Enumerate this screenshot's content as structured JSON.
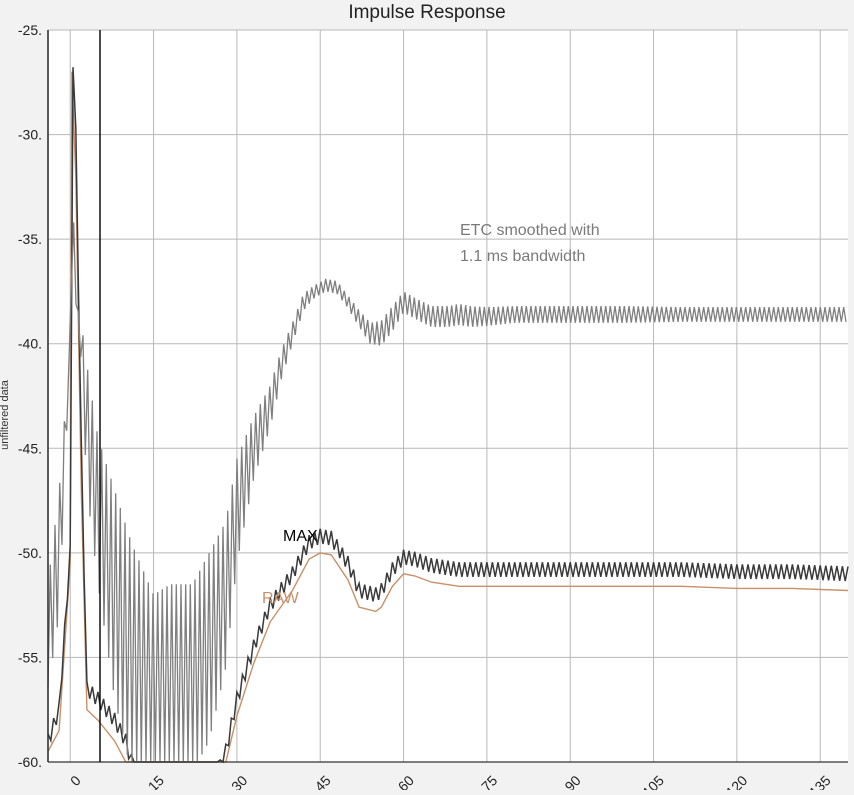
{
  "chart_data": {
    "type": "line",
    "title": "Impulse Response",
    "ylabel": "unfiltered data",
    "xlabel": "",
    "xlim": [
      -4,
      140
    ],
    "ylim": [
      -60,
      -25
    ],
    "x_ticks": [
      0,
      15,
      30,
      45,
      60,
      75,
      90,
      105,
      120,
      135
    ],
    "x_tick_labels": [
      "0",
      "15",
      "30",
      "45",
      "60",
      "75",
      "90",
      "105",
      "120",
      "135"
    ],
    "y_ticks": [
      -25,
      -30,
      -35,
      -40,
      -45,
      -50,
      -55,
      -60
    ],
    "y_tick_labels": [
      "-25.",
      "-30.",
      "-35.",
      "-40.",
      "-45.",
      "-50.",
      "-55.",
      "-60."
    ],
    "grid": true,
    "annotations": {
      "etc_line1": "ETC smoothed with",
      "etc_line2": "1.1 ms bandwidth",
      "max": "MAX",
      "raw": "RAW"
    },
    "series": [
      {
        "name": "ETC smoothed",
        "color": "#7f7f7f",
        "oscillating": true,
        "x": [
          -4,
          -2,
          0,
          0.5,
          1,
          2,
          3,
          5,
          8,
          11,
          15,
          18,
          22,
          25,
          28,
          30,
          33,
          36,
          38,
          40,
          42,
          44,
          46,
          48,
          50,
          52,
          54,
          56,
          58,
          60,
          62,
          65,
          68,
          70,
          72,
          75,
          80,
          85,
          90,
          100,
          110,
          120,
          130,
          140
        ],
        "center": [
          -54,
          -50,
          -40,
          -33,
          -38,
          -40,
          -44,
          -48,
          -52,
          -55,
          -57,
          -56.5,
          -56,
          -54.5,
          -52,
          -48,
          -45,
          -43,
          -41,
          -39.5,
          -38,
          -37.5,
          -37.2,
          -37.3,
          -38,
          -38.8,
          -39.5,
          -39.5,
          -38.8,
          -38,
          -38.3,
          -38.7,
          -38.7,
          -38.6,
          -38.7,
          -38.7,
          -38.6,
          -38.6,
          -38.6,
          -38.6,
          -38.6,
          -38.6,
          -38.6,
          -38.6
        ],
        "amplitude": [
          2.5,
          3,
          0,
          0,
          0,
          1,
          3,
          3.5,
          5,
          5.5,
          5,
          5,
          4.5,
          4.5,
          3.5,
          2.5,
          1.5,
          1,
          0.7,
          0.5,
          0.4,
          0.3,
          0.3,
          0.3,
          0.3,
          0.4,
          0.5,
          0.6,
          0.6,
          0.5,
          0.5,
          0.5,
          0.5,
          0.5,
          0.5,
          0.45,
          0.4,
          0.4,
          0.4,
          0.4,
          0.35,
          0.35,
          0.35,
          0.35
        ]
      },
      {
        "name": "MAX",
        "color": "#3a3a3a",
        "x": [
          -4,
          -2,
          0,
          0.3,
          1,
          2,
          3,
          5,
          8,
          10,
          11.5,
          13,
          22,
          26,
          28,
          30,
          33,
          36,
          40,
          43,
          45,
          47,
          50,
          52,
          55,
          56,
          58,
          60,
          62,
          65,
          70,
          75,
          80,
          90,
          100,
          110,
          120,
          130,
          140
        ],
        "y": [
          -59,
          -57.5,
          -50,
          -25,
          -30,
          -45,
          -56.5,
          -57,
          -58,
          -59,
          -60.5,
          -62,
          -62,
          -61,
          -59.5,
          -57,
          -54.5,
          -52.5,
          -51,
          -49.5,
          -49.2,
          -49.3,
          -50.5,
          -51.8,
          -52,
          -51.8,
          -50.8,
          -50.2,
          -50.3,
          -50.6,
          -50.8,
          -50.8,
          -50.8,
          -50.8,
          -50.8,
          -50.8,
          -50.9,
          -50.9,
          -51
        ]
      },
      {
        "name": "RAW",
        "color": "#c99068",
        "x": [
          -4,
          -2,
          0,
          0.3,
          1,
          2,
          3,
          5,
          8,
          10,
          11.5,
          13,
          22,
          26,
          28,
          30,
          33,
          36,
          40,
          43,
          45,
          47,
          50,
          52,
          55,
          56,
          58,
          60,
          62,
          65,
          70,
          75,
          80,
          90,
          100,
          110,
          120,
          130,
          140
        ],
        "y": [
          -59.5,
          -58.5,
          -50.5,
          -27,
          -32,
          -47,
          -57.5,
          -58,
          -59,
          -60,
          -61,
          -62,
          -62,
          -61.5,
          -60,
          -57.8,
          -55.3,
          -53.3,
          -51.8,
          -50.3,
          -50,
          -50.1,
          -51.3,
          -52.6,
          -52.8,
          -52.6,
          -51.6,
          -51,
          -51.1,
          -51.4,
          -51.6,
          -51.6,
          -51.6,
          -51.6,
          -51.6,
          -51.6,
          -51.7,
          -51.7,
          -51.8
        ]
      }
    ]
  }
}
